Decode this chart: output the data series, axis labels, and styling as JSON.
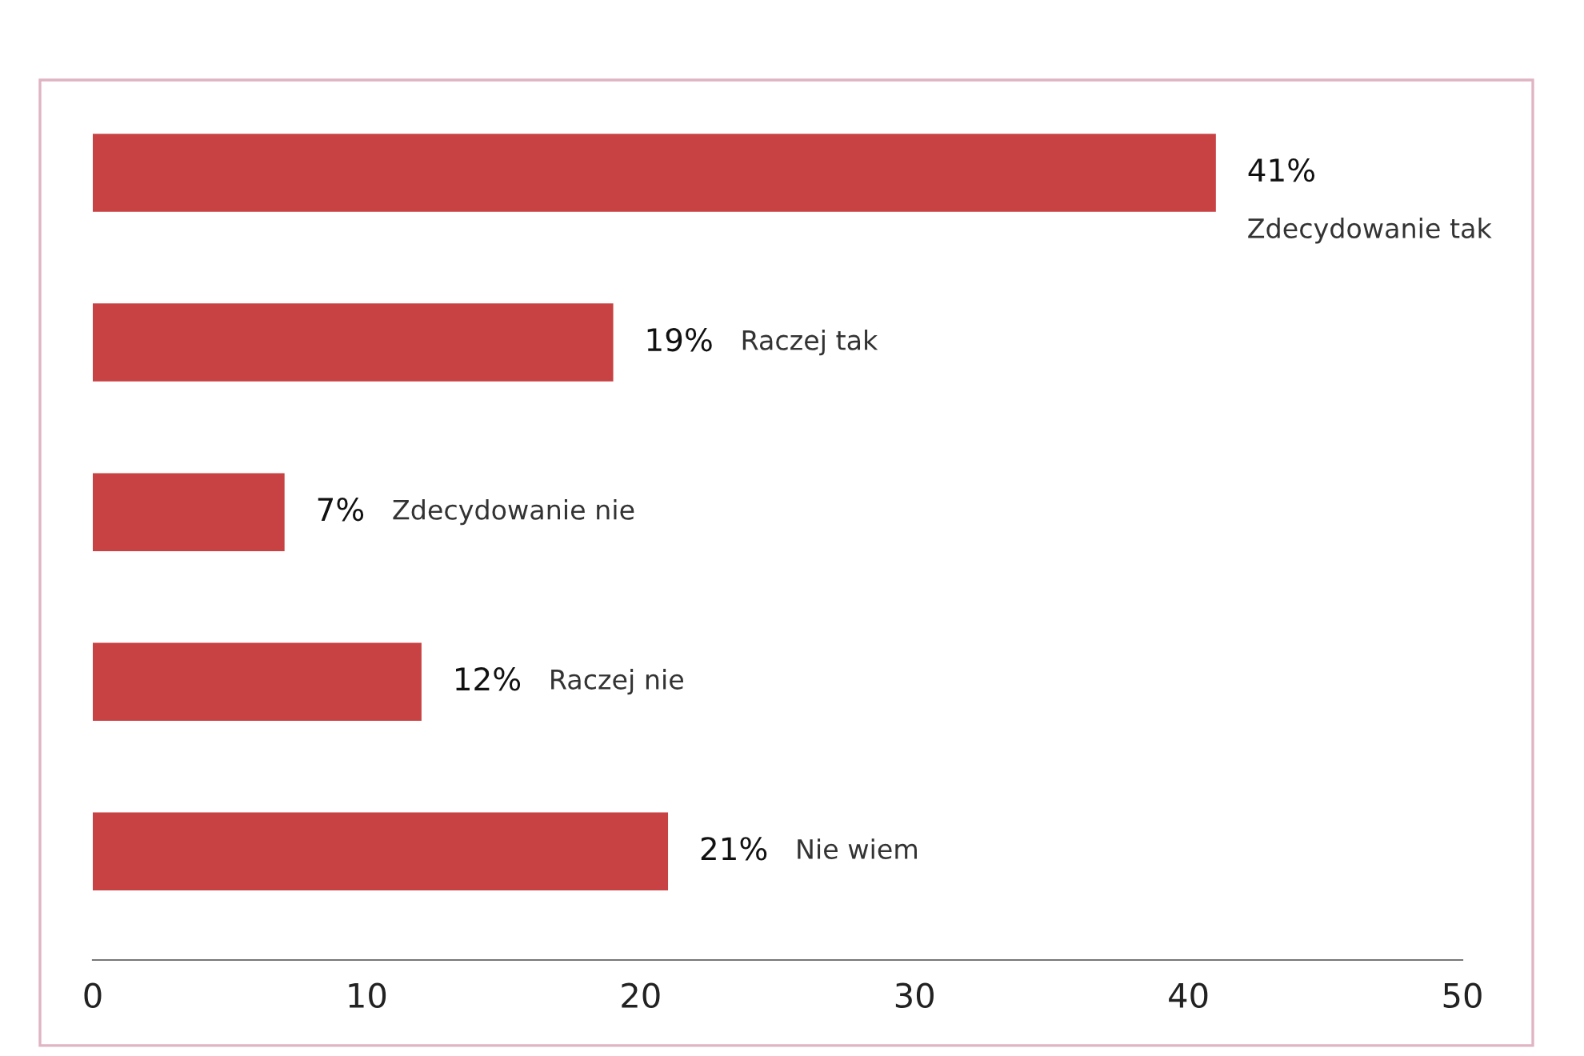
{
  "chart_data": {
    "type": "bar",
    "orientation": "horizontal",
    "categories": [
      "Zdecydowanie tak",
      "Raczej tak",
      "Zdecydowanie nie",
      "Raczej nie",
      "Nie wiem"
    ],
    "values": [
      41,
      19,
      7,
      12,
      21
    ],
    "value_labels": [
      "41%",
      "19%",
      "7%",
      "12%",
      "21%"
    ],
    "color": "#c84143",
    "xlim": [
      0,
      50
    ],
    "xticks": [
      0,
      10,
      20,
      30,
      40,
      50
    ],
    "grid": false,
    "legend": false
  }
}
